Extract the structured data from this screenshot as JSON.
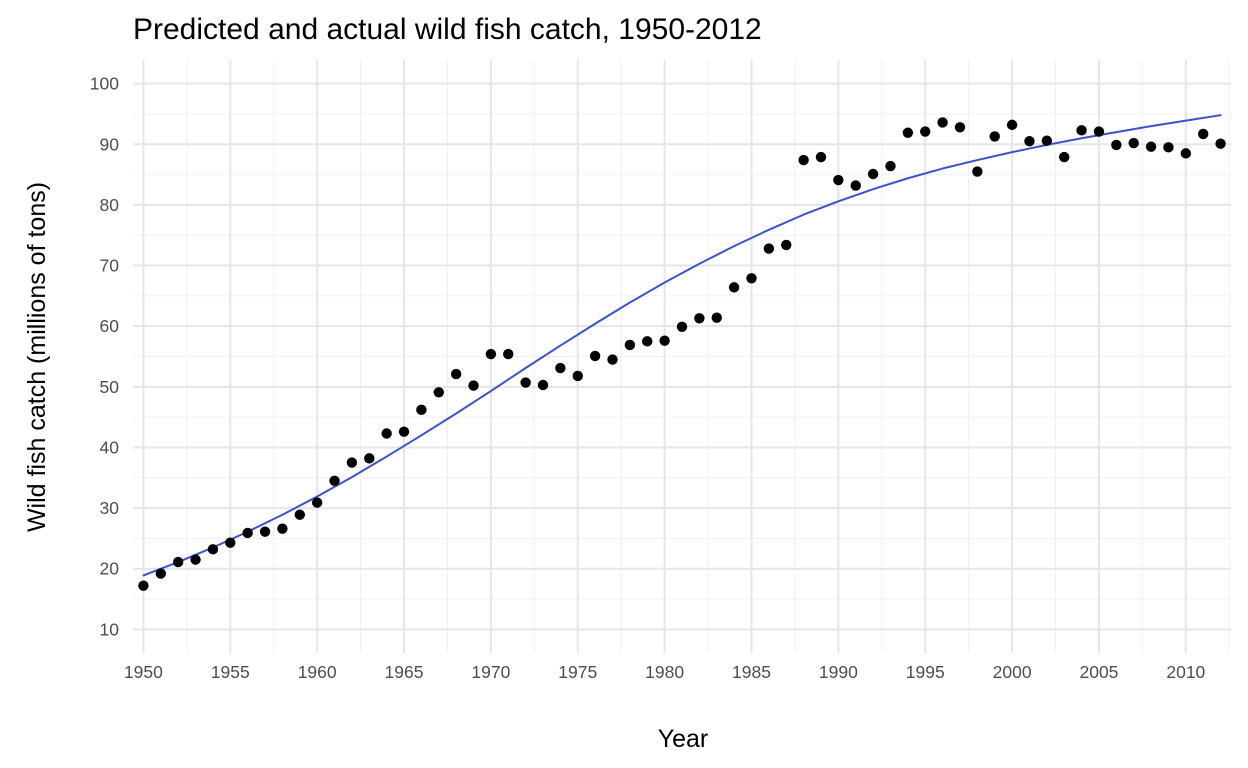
{
  "chart_data": {
    "type": "scatter",
    "title": "Predicted and actual wild fish catch, 1950-2012",
    "xlabel": "Year",
    "ylabel": "Wild fish catch (millions of tons)",
    "xlim": [
      1949.4,
      2012.6
    ],
    "ylim": [
      6.1,
      103.9
    ],
    "x_ticks": [
      1950,
      1955,
      1960,
      1965,
      1970,
      1975,
      1980,
      1985,
      1990,
      1995,
      2000,
      2005,
      2010
    ],
    "y_ticks": [
      10,
      20,
      30,
      40,
      50,
      60,
      70,
      80,
      90,
      100
    ],
    "grid": true,
    "legend": "none",
    "series": [
      {
        "type": "scatter",
        "color": "#000000",
        "x": [
          1950,
          1951,
          1952,
          1953,
          1954,
          1955,
          1956,
          1957,
          1958,
          1959,
          1960,
          1961,
          1962,
          1963,
          1964,
          1965,
          1966,
          1967,
          1968,
          1969,
          1970,
          1971,
          1972,
          1973,
          1974,
          1975,
          1976,
          1977,
          1978,
          1979,
          1980,
          1981,
          1982,
          1983,
          1984,
          1985,
          1986,
          1987,
          1988,
          1989,
          1990,
          1991,
          1992,
          1993,
          1994,
          1995,
          1996,
          1997,
          1998,
          1999,
          2000,
          2001,
          2002,
          2003,
          2004,
          2005,
          2006,
          2007,
          2008,
          2009,
          2010,
          2011,
          2012
        ],
        "y": [
          17.2,
          19.2,
          21.1,
          21.5,
          23.2,
          24.3,
          25.9,
          26.1,
          26.6,
          28.9,
          30.9,
          34.5,
          37.5,
          38.2,
          42.3,
          42.6,
          46.2,
          49.1,
          52.1,
          50.2,
          55.4,
          55.4,
          50.7,
          50.3,
          53.1,
          51.8,
          55.1,
          54.5,
          56.9,
          57.5,
          57.6,
          59.9,
          61.3,
          61.4,
          66.4,
          67.9,
          72.8,
          73.4,
          87.4,
          87.9,
          84.1,
          83.2,
          85.1,
          86.4,
          91.9,
          92.1,
          93.6,
          92.8,
          85.5,
          91.3,
          93.2,
          90.5,
          90.6,
          87.9,
          92.3,
          92.1,
          89.9,
          90.2,
          89.6,
          89.5,
          88.5,
          91.7,
          90.1
        ]
      },
      {
        "type": "line",
        "color": "#3a52d1",
        "x": [
          1950,
          1952,
          1954,
          1956,
          1958,
          1960,
          1962,
          1964,
          1966,
          1968,
          1970,
          1972,
          1974,
          1976,
          1978,
          1980,
          1982,
          1984,
          1986,
          1988,
          1990,
          1992,
          1994,
          1996,
          1998,
          2000,
          2002,
          2004,
          2006,
          2008,
          2010,
          2012
        ],
        "y": [
          18.9,
          21.1,
          23.5,
          26.1,
          28.9,
          31.9,
          35.1,
          38.5,
          42.0,
          45.6,
          49.3,
          53.1,
          56.8,
          60.4,
          63.9,
          67.2,
          70.3,
          73.2,
          75.9,
          78.4,
          80.6,
          82.6,
          84.4,
          86.0,
          87.4,
          88.7,
          89.9,
          91.0,
          92.0,
          93.0,
          93.9,
          94.8
        ]
      }
    ]
  }
}
